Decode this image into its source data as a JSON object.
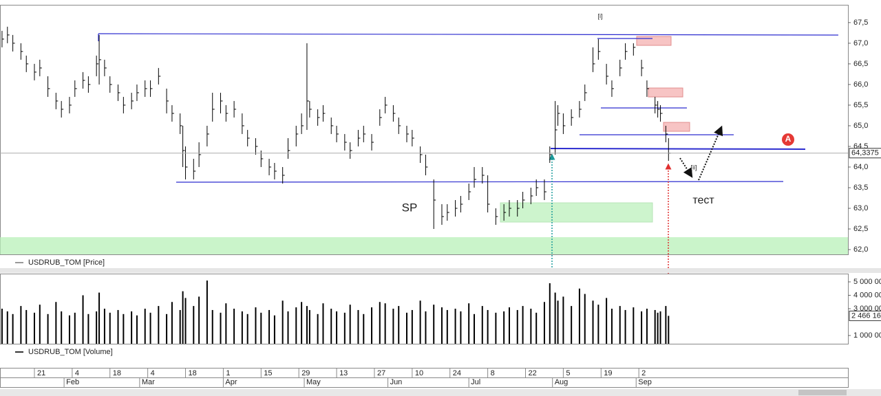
{
  "chart_data": [
    {
      "type": "ohlc",
      "name": "USDRUB_TOM [Price]",
      "color": "#000000",
      "x": [
        9,
        11,
        13,
        16,
        18,
        21,
        23,
        26,
        29,
        31,
        34,
        36,
        39,
        41,
        44,
        45,
        47,
        49,
        52,
        54,
        57,
        59,
        62,
        64,
        67,
        70,
        72,
        75,
        76,
        77,
        80,
        82,
        85,
        87,
        90,
        92,
        95,
        98,
        100,
        103,
        105,
        108,
        110,
        113,
        115,
        118,
        120,
        122,
        123,
        126,
        128,
        131,
        133,
        136,
        138,
        141,
        143,
        146,
        149,
        151,
        154,
        156,
        159,
        161,
        164,
        166,
        169,
        172,
        174,
        177,
        179,
        182,
        184,
        187,
        189,
        192,
        195,
        197,
        200,
        202,
        205,
        207,
        210,
        212,
        214,
        215,
        217,
        220,
        223,
        225,
        228,
        230,
        233,
        235,
        238,
        240,
        243,
        246,
        248,
        251,
        252,
        253,
        255,
        256
      ],
      "high": [
        67.3,
        67.4,
        67.2,
        67.0,
        66.7,
        66.5,
        66.6,
        66.2,
        65.8,
        65.6,
        65.7,
        66.1,
        66.3,
        66.2,
        66.7,
        67.2,
        66.6,
        66.2,
        66.0,
        65.7,
        65.8,
        66.0,
        66.1,
        66.1,
        66.4,
        65.9,
        65.5,
        65.3,
        65.0,
        64.5,
        64.2,
        64.6,
        65.0,
        65.8,
        65.8,
        65.5,
        65.6,
        65.3,
        64.9,
        64.7,
        64.4,
        64.2,
        64.1,
        64.0,
        64.7,
        65.0,
        65.3,
        67.0,
        65.6,
        65.4,
        65.5,
        65.2,
        65.0,
        64.8,
        64.6,
        64.9,
        65.0,
        64.8,
        65.4,
        65.7,
        65.5,
        65.2,
        65.0,
        64.9,
        64.5,
        64.3,
        63.7,
        63.1,
        63.1,
        63.2,
        63.3,
        63.6,
        64.0,
        64.0,
        63.8,
        63.0,
        63.1,
        63.2,
        63.2,
        63.4,
        63.5,
        63.7,
        63.7,
        64.5,
        65.6,
        65.5,
        65.3,
        65.4,
        65.6,
        66.0,
        66.9,
        67.1,
        66.5,
        66.1,
        66.6,
        67.0,
        67.0,
        66.6,
        66.1,
        65.7,
        65.6,
        65.5,
        65.0,
        64.7
      ],
      "low": [
        66.9,
        67.0,
        66.8,
        66.6,
        66.3,
        66.1,
        66.2,
        65.7,
        65.4,
        65.2,
        65.3,
        65.7,
        65.9,
        65.8,
        66.2,
        66.0,
        66.2,
        65.8,
        65.6,
        65.3,
        65.4,
        65.6,
        65.7,
        65.7,
        66.0,
        65.3,
        65.1,
        64.8,
        64.0,
        63.7,
        63.7,
        64.0,
        64.5,
        65.1,
        65.3,
        65.1,
        65.2,
        64.8,
        64.5,
        64.3,
        64.0,
        63.8,
        63.7,
        63.6,
        64.2,
        64.5,
        64.8,
        64.9,
        65.2,
        65.0,
        65.1,
        64.8,
        64.6,
        64.4,
        64.2,
        64.5,
        64.6,
        64.4,
        65.0,
        65.3,
        65.1,
        64.8,
        64.6,
        64.5,
        64.1,
        63.8,
        62.5,
        62.6,
        62.7,
        62.8,
        62.9,
        63.2,
        63.5,
        63.6,
        62.9,
        62.6,
        62.7,
        62.8,
        62.8,
        63.0,
        63.1,
        63.3,
        63.2,
        64.1,
        64.3,
        65.0,
        64.8,
        65.0,
        65.2,
        65.6,
        66.3,
        66.6,
        66.0,
        65.7,
        66.2,
        66.6,
        66.7,
        66.2,
        65.7,
        65.3,
        65.2,
        65.1,
        64.6,
        64.15
      ],
      "close": [
        67.1,
        67.2,
        67.0,
        66.8,
        66.5,
        66.3,
        66.4,
        65.9,
        65.6,
        65.4,
        65.5,
        65.9,
        66.1,
        66.0,
        66.5,
        66.6,
        66.4,
        66.0,
        65.8,
        65.5,
        65.6,
        65.8,
        65.9,
        65.9,
        66.2,
        65.6,
        65.3,
        65.0,
        64.4,
        64.0,
        63.9,
        64.3,
        64.8,
        65.4,
        65.6,
        65.3,
        65.4,
        65.0,
        64.7,
        64.5,
        64.2,
        64.0,
        63.9,
        63.8,
        64.4,
        64.8,
        65.0,
        65.6,
        65.4,
        65.2,
        65.3,
        65.0,
        64.8,
        64.6,
        64.4,
        64.7,
        64.8,
        64.6,
        65.2,
        65.5,
        65.3,
        65.0,
        64.8,
        64.7,
        64.3,
        64.0,
        63.2,
        62.8,
        62.9,
        63.0,
        63.1,
        63.4,
        63.7,
        63.8,
        63.1,
        62.8,
        62.9,
        63.0,
        63.0,
        63.2,
        63.3,
        63.5,
        63.4,
        64.3,
        64.9,
        65.3,
        65.0,
        65.2,
        65.4,
        65.8,
        66.5,
        66.8,
        66.2,
        65.9,
        66.4,
        66.8,
        66.9,
        66.4,
        65.9,
        65.5,
        65.4,
        65.3,
        64.8,
        64.3375
      ],
      "last_label": "64,3375",
      "xlim": [
        8.25,
        322.5
      ],
      "ylim": [
        61.884,
        67.914
      ],
      "yticks": [
        {
          "value": 62,
          "label": "62,0"
        },
        {
          "value": 62.5,
          "label": "62,5"
        },
        {
          "value": 63,
          "label": "63,0"
        },
        {
          "value": 63.5,
          "label": "63,5"
        },
        {
          "value": 64,
          "label": "64,0"
        },
        {
          "value": 64.5,
          "label": "64,5"
        },
        {
          "value": 65,
          "label": "65,0"
        },
        {
          "value": 65.5,
          "label": "65,5"
        },
        {
          "value": 66,
          "label": "66,0"
        },
        {
          "value": 66.5,
          "label": "66,5"
        },
        {
          "value": 67,
          "label": "67,0"
        },
        {
          "value": 67.5,
          "label": "67,5"
        }
      ],
      "annotations": [
        "[i]",
        "[ii]",
        "SP",
        "тест",
        "A"
      ]
    },
    {
      "type": "bar",
      "name": "USDRUB_TOM [Volume]",
      "color": "#000000",
      "x": [
        9,
        11,
        13,
        16,
        18,
        21,
        23,
        26,
        29,
        31,
        34,
        36,
        39,
        41,
        44,
        45,
        47,
        49,
        52,
        54,
        57,
        59,
        62,
        64,
        67,
        70,
        72,
        75,
        76,
        77,
        80,
        82,
        85,
        87,
        90,
        92,
        95,
        98,
        100,
        103,
        105,
        108,
        110,
        113,
        115,
        118,
        120,
        122,
        123,
        126,
        128,
        131,
        133,
        136,
        138,
        141,
        143,
        146,
        149,
        151,
        154,
        156,
        159,
        161,
        164,
        166,
        169,
        172,
        174,
        177,
        179,
        182,
        184,
        187,
        189,
        192,
        195,
        197,
        200,
        202,
        205,
        207,
        210,
        212,
        214,
        215,
        217,
        220,
        223,
        225,
        228,
        230,
        233,
        235,
        238,
        240,
        243,
        246,
        248,
        251,
        252,
        253,
        255,
        256
      ],
      "values": [
        3000000,
        2800000,
        2600000,
        3200000,
        2900000,
        2700000,
        3300000,
        2600000,
        3500000,
        2800000,
        2500000,
        2700000,
        4000000,
        2600000,
        2800000,
        4200000,
        3000000,
        2700000,
        2900000,
        2600000,
        2800000,
        2500000,
        3000000,
        2700000,
        3200000,
        2600000,
        3500000,
        2900000,
        4300000,
        3800000,
        3200000,
        3900000,
        5100000,
        2900000,
        2700000,
        3400000,
        3000000,
        2800000,
        2600000,
        3100000,
        2700000,
        2900000,
        2500000,
        3600000,
        2800000,
        3100000,
        3500000,
        3200000,
        2900000,
        2600000,
        3400000,
        3000000,
        2800000,
        2700000,
        3300000,
        2900000,
        2600000,
        3100000,
        3500000,
        3400000,
        3000000,
        3200000,
        2700000,
        2900000,
        3600000,
        2800000,
        3300000,
        3100000,
        2900000,
        3000000,
        2800000,
        3400000,
        2600000,
        3200000,
        2900000,
        2700000,
        2800000,
        3100000,
        2900000,
        3200000,
        3000000,
        2700000,
        3500000,
        4900000,
        4200000,
        3600000,
        3900000,
        3200000,
        4500000,
        4100000,
        3600000,
        3300000,
        3800000,
        3000000,
        3200000,
        2900000,
        3100000,
        2800000,
        3000000,
        2900000,
        2700000,
        2800000,
        3200000,
        2466160
      ],
      "last_label": "2 466 16",
      "xlim": [
        8.25,
        322.5
      ],
      "ylim": [
        385000,
        5615000
      ],
      "yticks": [
        {
          "value": 1000000,
          "label": "1 000 000"
        },
        {
          "value": 3000000,
          "label": "3 000 00"
        },
        {
          "value": 4000000,
          "label": "4 000 00"
        },
        {
          "value": 5000000,
          "label": "5 000 00"
        }
      ],
      "xticks": [
        {
          "value": 21,
          "label": "21"
        },
        {
          "value": 35,
          "label": "4"
        },
        {
          "value": 49,
          "label": "18"
        },
        {
          "value": 63,
          "label": "4"
        },
        {
          "value": 77,
          "label": "18"
        },
        {
          "value": 91,
          "label": "1"
        },
        {
          "value": 105,
          "label": "15"
        },
        {
          "value": 119,
          "label": "29"
        },
        {
          "value": 133,
          "label": "13"
        },
        {
          "value": 147,
          "label": "27"
        },
        {
          "value": 161,
          "label": "10"
        },
        {
          "value": 175,
          "label": "24"
        },
        {
          "value": 189,
          "label": "8"
        },
        {
          "value": 203,
          "label": "22"
        },
        {
          "value": 217,
          "label": "5"
        },
        {
          "value": 231,
          "label": "19"
        },
        {
          "value": 245,
          "label": "2"
        }
      ],
      "month_ticks": [
        {
          "value": 32,
          "label": "Feb"
        },
        {
          "value": 60,
          "label": "Mar"
        },
        {
          "value": 91,
          "label": "Apr"
        },
        {
          "value": 121,
          "label": "May"
        },
        {
          "value": 152,
          "label": "Jun"
        },
        {
          "value": 182,
          "label": "Jul"
        },
        {
          "value": 213,
          "label": "Aug"
        },
        {
          "value": 244,
          "label": "Sep"
        }
      ]
    }
  ]
}
